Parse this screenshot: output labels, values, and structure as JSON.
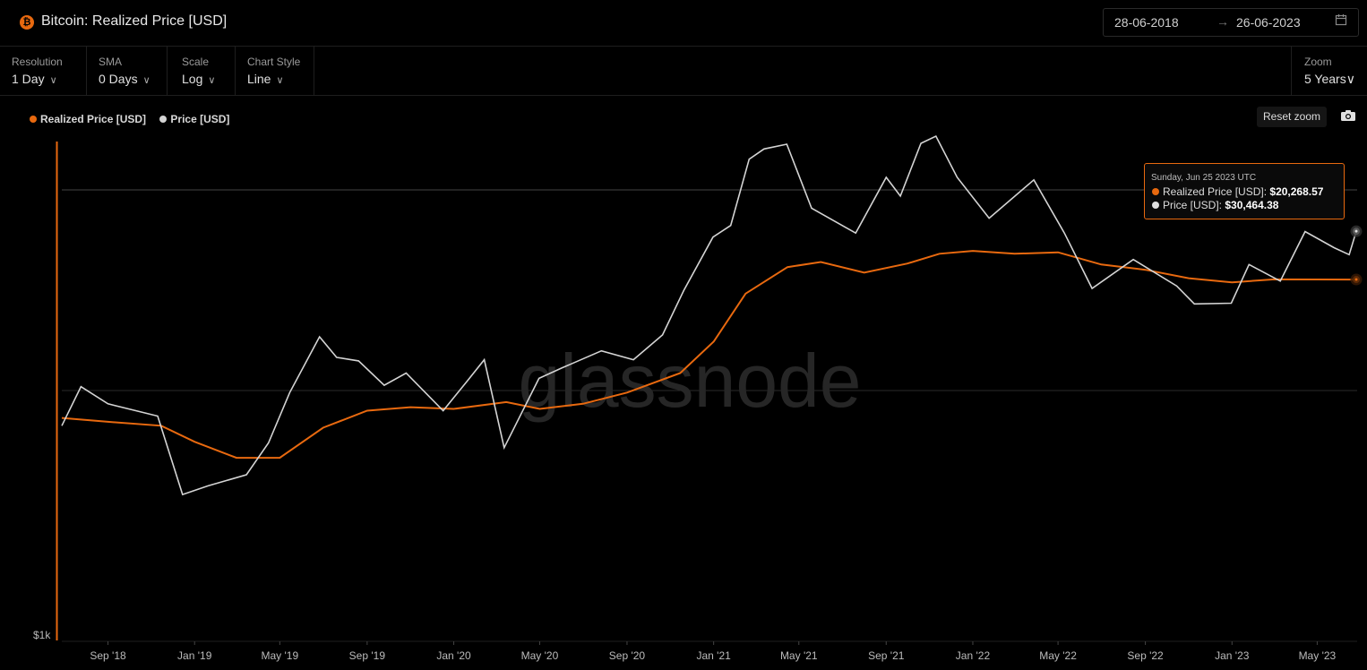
{
  "header": {
    "title": "Bitcoin: Realized Price [USD]",
    "date_from": "28-06-2018",
    "date_arrow": "→",
    "date_to": "26-06-2023"
  },
  "controls": {
    "resolution": {
      "label": "Resolution",
      "value": "1 Day"
    },
    "sma": {
      "label": "SMA",
      "value": "0 Days"
    },
    "scale": {
      "label": "Scale",
      "value": "Log"
    },
    "chart_style": {
      "label": "Chart Style",
      "value": "Line"
    },
    "zoom": {
      "label": "Zoom",
      "value": "5 Years"
    }
  },
  "toolbar": {
    "reset_zoom": "Reset zoom"
  },
  "tooltip": {
    "date": "Sunday, Jun 25 2023 UTC",
    "realized_label": "Realized Price [USD]:",
    "realized_value": "$20,268.57",
    "price_label": "Price [USD]:",
    "price_value": "$30,464.38"
  },
  "watermark": "glassnode",
  "colors": {
    "realized": "#e8690f",
    "price": "#d4d4d4",
    "accent": "#e8690f"
  },
  "chart_data": {
    "type": "line",
    "scale": "log",
    "title": "Bitcoin: Realized Price [USD]",
    "y_tick_labels": [
      "$1k"
    ],
    "x_tick_labels": [
      "Sep '18",
      "Jan '19",
      "May '19",
      "Sep '19",
      "Jan '20",
      "May '20",
      "Sep '20",
      "Jan '21",
      "May '21",
      "Sep '21",
      "Jan '22",
      "May '22",
      "Sep '22",
      "Jan '23",
      "May '23"
    ],
    "legend_position": "top-left",
    "grid": true,
    "series": [
      {
        "name": "Realized Price [USD]",
        "color": "#e8690f",
        "points": [
          [
            "2018-06-28",
            6300
          ],
          [
            "2018-09-01",
            6100
          ],
          [
            "2018-11-15",
            5900
          ],
          [
            "2019-01-01",
            5150
          ],
          [
            "2019-03-01",
            4500
          ],
          [
            "2019-05-01",
            4500
          ],
          [
            "2019-07-01",
            5800
          ],
          [
            "2019-09-01",
            6700
          ],
          [
            "2019-11-01",
            6900
          ],
          [
            "2020-01-01",
            6800
          ],
          [
            "2020-03-15",
            7200
          ],
          [
            "2020-05-01",
            6800
          ],
          [
            "2020-07-01",
            7100
          ],
          [
            "2020-09-01",
            7800
          ],
          [
            "2020-11-15",
            9200
          ],
          [
            "2021-01-01",
            12000
          ],
          [
            "2021-02-15",
            18000
          ],
          [
            "2021-04-15",
            22500
          ],
          [
            "2021-06-01",
            23500
          ],
          [
            "2021-08-01",
            21500
          ],
          [
            "2021-10-01",
            23200
          ],
          [
            "2021-11-15",
            25200
          ],
          [
            "2022-01-01",
            25800
          ],
          [
            "2022-03-01",
            25200
          ],
          [
            "2022-05-01",
            25500
          ],
          [
            "2022-07-01",
            23000
          ],
          [
            "2022-09-01",
            22000
          ],
          [
            "2022-11-01",
            20500
          ],
          [
            "2023-01-01",
            19800
          ],
          [
            "2023-03-01",
            20300
          ],
          [
            "2023-06-25",
            20268.57
          ]
        ]
      },
      {
        "name": "Price [USD]",
        "color": "#d4d4d4",
        "points": [
          [
            "2018-06-28",
            5900
          ],
          [
            "2018-07-25",
            8200
          ],
          [
            "2018-09-01",
            7100
          ],
          [
            "2018-11-10",
            6400
          ],
          [
            "2018-12-15",
            3300
          ],
          [
            "2019-01-20",
            3550
          ],
          [
            "2019-03-15",
            3900
          ],
          [
            "2019-04-15",
            5100
          ],
          [
            "2019-05-15",
            7800
          ],
          [
            "2019-06-26",
            12500
          ],
          [
            "2019-07-20",
            10500
          ],
          [
            "2019-08-20",
            10200
          ],
          [
            "2019-09-25",
            8300
          ],
          [
            "2019-10-26",
            9200
          ],
          [
            "2019-12-17",
            6700
          ],
          [
            "2020-01-20",
            8600
          ],
          [
            "2020-02-13",
            10300
          ],
          [
            "2020-03-12",
            4900
          ],
          [
            "2020-04-30",
            8800
          ],
          [
            "2020-06-01",
            9600
          ],
          [
            "2020-07-27",
            11100
          ],
          [
            "2020-09-10",
            10300
          ],
          [
            "2020-10-21",
            12700
          ],
          [
            "2020-11-20",
            18500
          ],
          [
            "2020-12-31",
            29000
          ],
          [
            "2021-01-25",
            32000
          ],
          [
            "2021-02-20",
            56000
          ],
          [
            "2021-03-13",
            61000
          ],
          [
            "2021-04-14",
            63500
          ],
          [
            "2021-05-19",
            37000
          ],
          [
            "2021-07-20",
            30000
          ],
          [
            "2021-09-01",
            48000
          ],
          [
            "2021-09-21",
            41000
          ],
          [
            "2021-10-20",
            64000
          ],
          [
            "2021-11-10",
            68000
          ],
          [
            "2021-12-10",
            48000
          ],
          [
            "2022-01-24",
            34000
          ],
          [
            "2022-03-28",
            47000
          ],
          [
            "2022-05-10",
            30000
          ],
          [
            "2022-06-18",
            18800
          ],
          [
            "2022-08-15",
            24000
          ],
          [
            "2022-10-15",
            19200
          ],
          [
            "2022-11-09",
            16500
          ],
          [
            "2022-12-31",
            16600
          ],
          [
            "2023-01-25",
            23000
          ],
          [
            "2023-03-10",
            20000
          ],
          [
            "2023-04-14",
            30400
          ],
          [
            "2023-05-25",
            26500
          ],
          [
            "2023-06-15",
            25000
          ],
          [
            "2023-06-25",
            30464.38
          ]
        ]
      }
    ]
  }
}
